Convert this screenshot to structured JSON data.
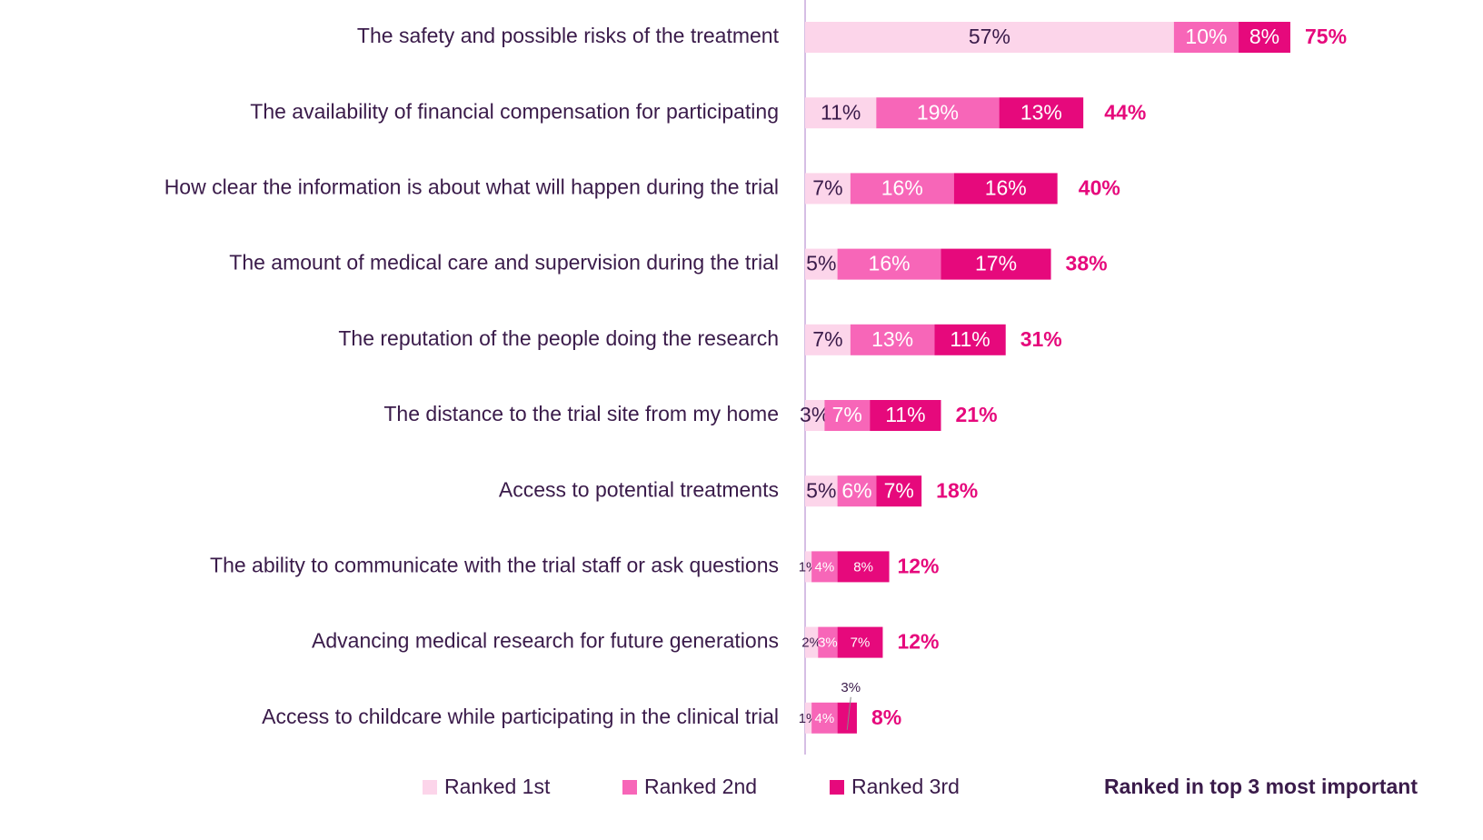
{
  "chart_data": {
    "type": "stacked-bar-horizontal",
    "categories": [
      "The safety and possible risks of the treatment",
      "The availability of financial compensation for participating",
      "How clear the information is about what will happen during the trial",
      "The amount of medical care and supervision during the trial",
      "The reputation of the people doing the research",
      "The distance to the trial site from my home",
      "Access to potential treatments",
      "The ability to communicate with the trial staff or ask questions",
      "Advancing medical research for future generations",
      "Access to childcare while participating in the clinical trial"
    ],
    "series": [
      {
        "name": "Ranked 1st",
        "color": "#fcd5ea",
        "label_color": "#3a1b4a",
        "values": [
          57,
          11,
          7,
          5,
          7,
          3,
          5,
          1,
          2,
          1
        ],
        "value_labels": [
          "57%",
          "11%",
          "7%",
          "5%",
          "7%",
          "3%",
          "5%",
          "1%",
          "2%",
          "1%"
        ]
      },
      {
        "name": "Ranked 2nd",
        "color": "#f766b8",
        "label_color": "#ffffff",
        "values": [
          10,
          19,
          16,
          16,
          13,
          7,
          6,
          4,
          3,
          4
        ],
        "value_labels": [
          "10%",
          "19%",
          "16%",
          "16%",
          "13%",
          "7%",
          "6%",
          "4%",
          "3%",
          "4%"
        ]
      },
      {
        "name": "Ranked 3rd",
        "color": "#e6097c",
        "label_color": "#ffffff",
        "values": [
          8,
          13,
          16,
          17,
          11,
          11,
          7,
          8,
          7,
          3
        ],
        "value_labels": [
          "8%",
          "13%",
          "16%",
          "17%",
          "11%",
          "11%",
          "7%",
          "8%",
          "7%",
          "3%"
        ]
      }
    ],
    "totals_name": "Ranked in top 3 most important",
    "totals_color": "#e6097c",
    "totals": [
      75,
      44,
      40,
      38,
      31,
      21,
      18,
      12,
      12,
      8
    ],
    "total_labels": [
      "75%",
      "44%",
      "40%",
      "38%",
      "31%",
      "21%",
      "18%",
      "12%",
      "12%",
      "8%"
    ]
  }
}
